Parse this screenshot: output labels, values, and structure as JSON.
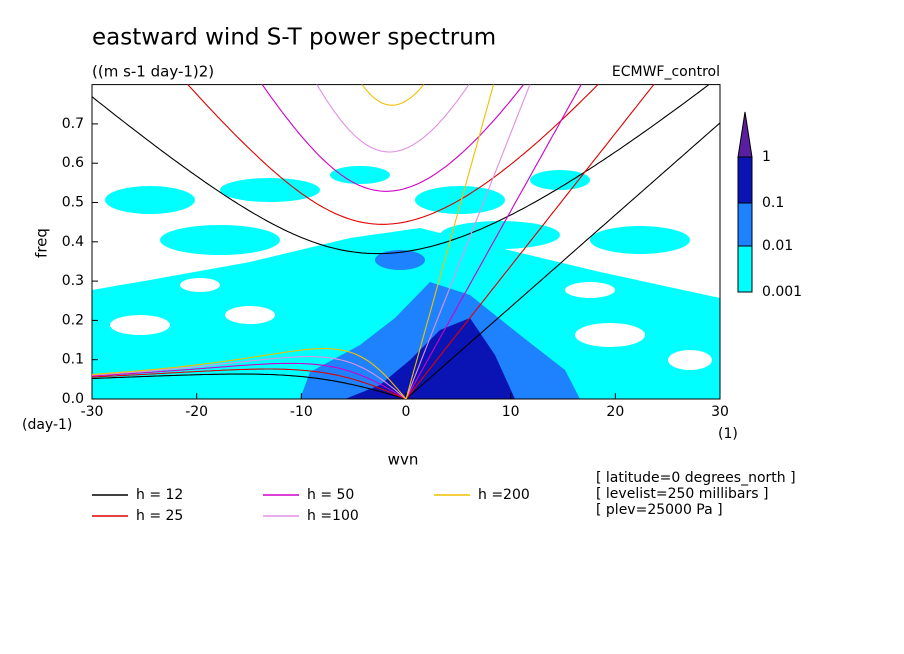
{
  "chart_data": {
    "type": "spectrum",
    "title": "eastward wind S-T power spectrum",
    "subtitle": "((m s-1 day-1)2)",
    "dataset": "ECMWF_control",
    "x_label": "wvn",
    "y_label": "freq",
    "y_unit": "(day-1)",
    "x_unit": "(1)",
    "xlim": [
      -30,
      30
    ],
    "ylim": [
      0,
      0.8
    ],
    "xticks": [
      -30,
      -20,
      -10,
      0,
      10,
      20,
      30
    ],
    "yticks": [
      {
        "value": 0,
        "label": "0.0"
      },
      {
        "value": 0.1,
        "label": "0.1"
      },
      {
        "value": 0.2,
        "label": "0.2"
      },
      {
        "value": 0.3,
        "label": "0.3"
      },
      {
        "value": 0.4,
        "label": "0.4"
      },
      {
        "value": 0.5,
        "label": "0.5"
      },
      {
        "value": 0.6,
        "label": "0.6"
      },
      {
        "value": 0.7,
        "label": "0.7"
      }
    ],
    "series": [
      {
        "name": "h = 12",
        "h": 12,
        "color": "#000000"
      },
      {
        "name": "h = 25",
        "h": 25,
        "color": "#e00000"
      },
      {
        "name": "h = 50",
        "h": 50,
        "color": "#d000c8"
      },
      {
        "name": "h =100",
        "h": 100,
        "color": "#e090e0"
      },
      {
        "name": "h =200",
        "h": 200,
        "color": "#f0c000"
      }
    ],
    "colorbar": {
      "levels": [
        0.001,
        0.01,
        0.1,
        1
      ],
      "colors": [
        "#00ffff",
        "#1e82ff",
        "#0a14b4",
        "#5a1ea0"
      ]
    },
    "notes": [
      "[ latitude=0 degrees_north ]",
      "[ levelist=250 millibars ]",
      "[ plev=25000 Pa ]"
    ]
  }
}
